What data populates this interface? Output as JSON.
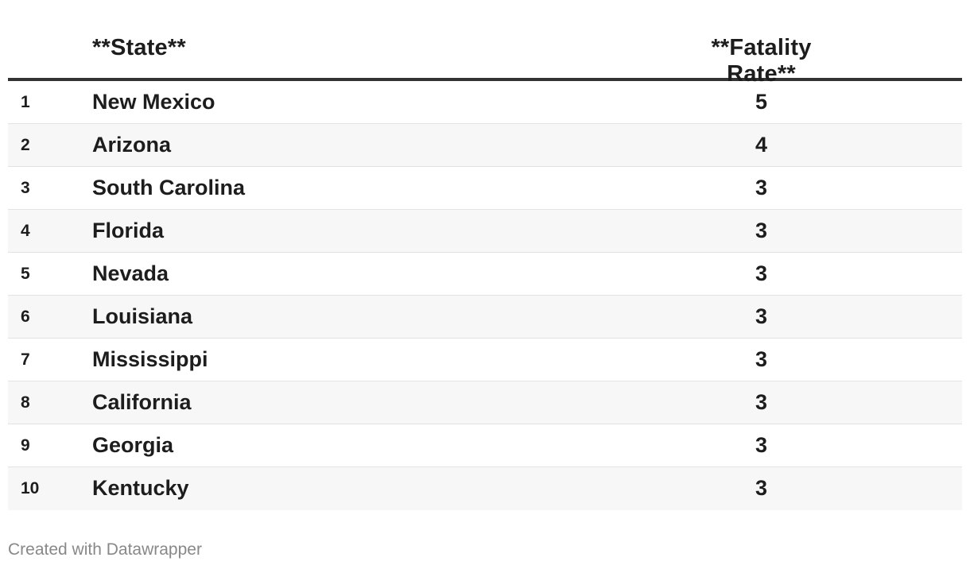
{
  "chart_data": {
    "type": "table",
    "columns": [
      "",
      "**State**",
      "**Fatality Rate**"
    ],
    "rows": [
      {
        "rank": "1",
        "state": "New Mexico",
        "fatality_rate": 5
      },
      {
        "rank": "2",
        "state": "Arizona",
        "fatality_rate": 4
      },
      {
        "rank": "3",
        "state": "South Carolina",
        "fatality_rate": 3
      },
      {
        "rank": "4",
        "state": "Florida",
        "fatality_rate": 3
      },
      {
        "rank": "5",
        "state": "Nevada",
        "fatality_rate": 3
      },
      {
        "rank": "6",
        "state": "Louisiana",
        "fatality_rate": 3
      },
      {
        "rank": "7",
        "state": "Mississippi",
        "fatality_rate": 3
      },
      {
        "rank": "8",
        "state": "California",
        "fatality_rate": 3
      },
      {
        "rank": "9",
        "state": "Georgia",
        "fatality_rate": 3
      },
      {
        "rank": "10",
        "state": "Kentucky",
        "fatality_rate": 3
      }
    ]
  },
  "footer": {
    "credit": "Created with Datawrapper"
  }
}
